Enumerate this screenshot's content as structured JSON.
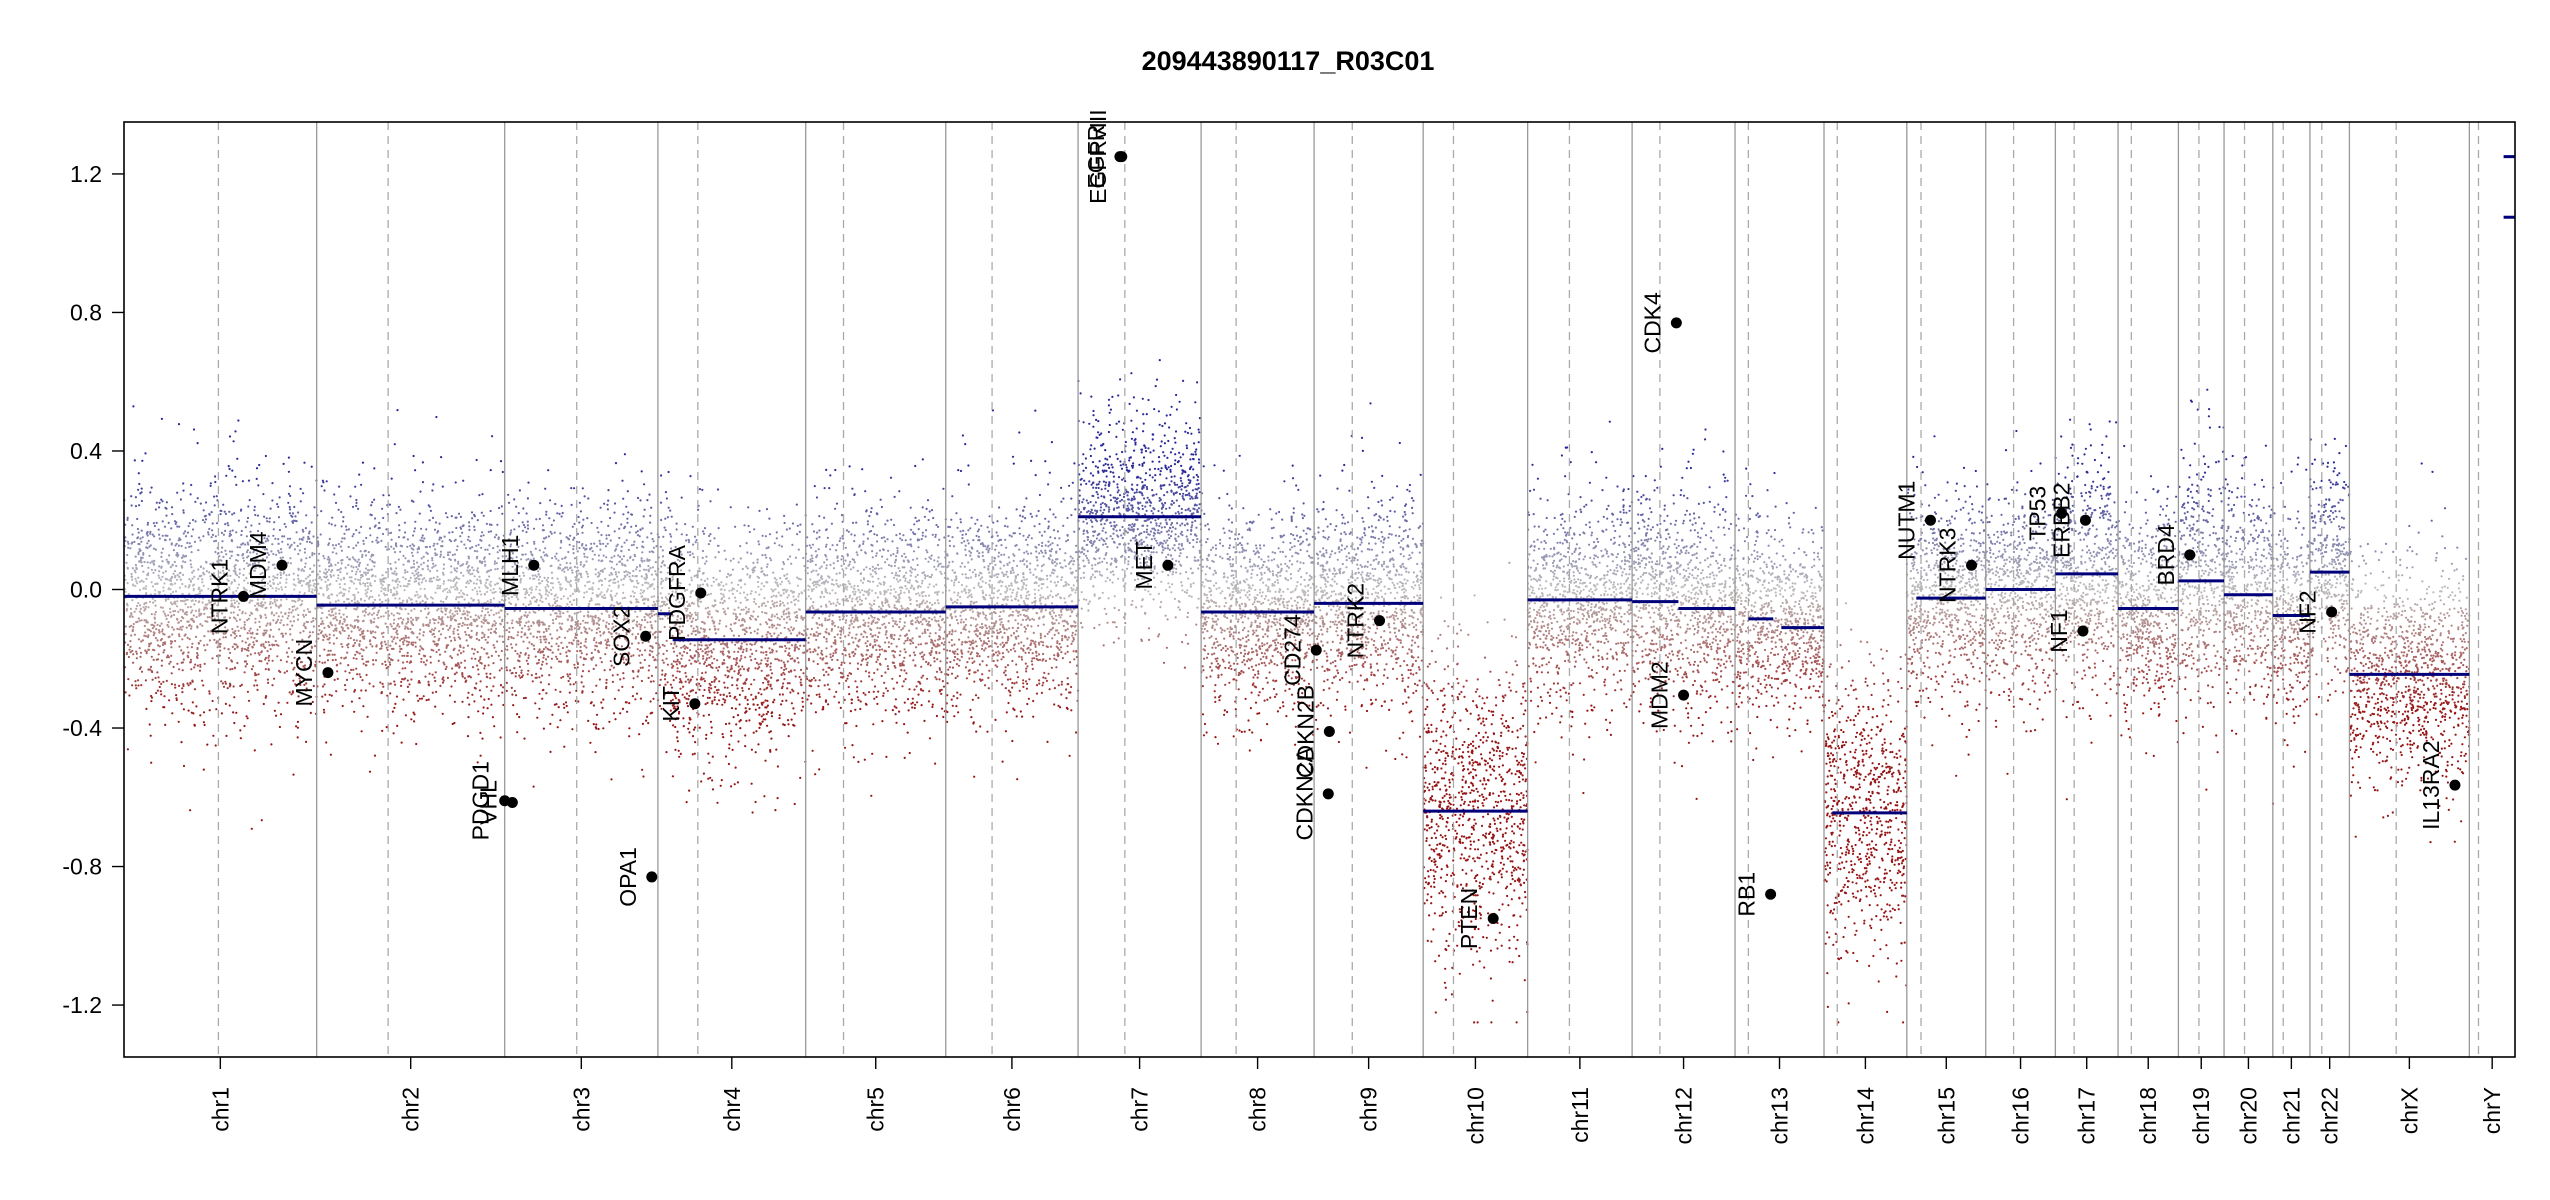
{
  "chart_data": {
    "type": "scatter",
    "title": "209443890117_R03C01",
    "xlabel": "",
    "ylabel": "",
    "ylim": [
      -1.35,
      1.35
    ],
    "y_ticks": [
      -1.2,
      -0.8,
      -0.4,
      0.0,
      0.4,
      0.8,
      1.2
    ],
    "y_tick_labels": [
      "-1.2",
      "-0.8",
      "-0.4",
      "0.0",
      "0.4",
      "0.8",
      "1.2"
    ],
    "colors": {
      "gain": "#3a3aa0",
      "loss": "#a01818",
      "neutral": "#b4b4b4",
      "segment": "#00007a",
      "gene_point": "#000000"
    },
    "chromosomes": [
      {
        "name": "chr1",
        "length": 249,
        "centromere": 0.49,
        "segments": [
          {
            "start": 0,
            "end": 1,
            "value": -0.02
          }
        ],
        "noise": 0.16
      },
      {
        "name": "chr2",
        "length": 243,
        "centromere": 0.38,
        "segments": [
          {
            "start": 0,
            "end": 1,
            "value": -0.045
          }
        ],
        "noise": 0.15
      },
      {
        "name": "chr3",
        "length": 198,
        "centromere": 0.47,
        "segments": [
          {
            "start": 0,
            "end": 1,
            "value": -0.055
          }
        ],
        "noise": 0.15
      },
      {
        "name": "chr4",
        "length": 191,
        "centromere": 0.27,
        "segments": [
          {
            "start": 0,
            "end": 0.1,
            "value": -0.07
          },
          {
            "start": 0.1,
            "end": 1,
            "value": -0.145
          }
        ],
        "noise": 0.16
      },
      {
        "name": "chr5",
        "length": 181,
        "centromere": 0.27,
        "segments": [
          {
            "start": 0,
            "end": 1,
            "value": -0.065
          }
        ],
        "noise": 0.15
      },
      {
        "name": "chr6",
        "length": 171,
        "centromere": 0.35,
        "segments": [
          {
            "start": 0,
            "end": 1,
            "value": -0.05
          }
        ],
        "noise": 0.15
      },
      {
        "name": "chr7",
        "length": 159,
        "centromere": 0.38,
        "segments": [
          {
            "start": 0,
            "end": 0.36,
            "value": 0.21
          },
          {
            "start": 0.36,
            "end": 1,
            "value": 0.21
          }
        ],
        "noise": 0.14
      },
      {
        "name": "chr8",
        "length": 146,
        "centromere": 0.31,
        "segments": [
          {
            "start": 0,
            "end": 1,
            "value": -0.065
          }
        ],
        "noise": 0.15
      },
      {
        "name": "chr9",
        "length": 141,
        "centromere": 0.35,
        "segments": [
          {
            "start": 0,
            "end": 1,
            "value": -0.04
          }
        ],
        "noise": 0.15
      },
      {
        "name": "chr10",
        "length": 135,
        "centromere": 0.29,
        "segments": [
          {
            "start": 0,
            "end": 1,
            "value": -0.64
          }
        ],
        "noise": 0.22
      },
      {
        "name": "chr11",
        "length": 135,
        "centromere": 0.4,
        "segments": [
          {
            "start": 0,
            "end": 1,
            "value": -0.03
          }
        ],
        "noise": 0.15
      },
      {
        "name": "chr12",
        "length": 133,
        "centromere": 0.27,
        "segments": [
          {
            "start": 0,
            "end": 0.45,
            "value": -0.035
          },
          {
            "start": 0.45,
            "end": 1,
            "value": -0.055
          }
        ],
        "noise": 0.16
      },
      {
        "name": "chr13",
        "length": 115,
        "centromere": 0.15,
        "segments": [
          {
            "start": 0.15,
            "end": 0.43,
            "value": -0.085
          },
          {
            "start": 0.52,
            "end": 1,
            "value": -0.11
          }
        ],
        "noise": 0.14
      },
      {
        "name": "chr14",
        "length": 107,
        "centromere": 0.16,
        "segments": [
          {
            "start": 0.1,
            "end": 1,
            "value": -0.645
          }
        ],
        "noise": 0.22
      },
      {
        "name": "chr15",
        "length": 102,
        "centromere": 0.18,
        "segments": [
          {
            "start": 0.12,
            "end": 1,
            "value": -0.025
          }
        ],
        "noise": 0.15
      },
      {
        "name": "chr16",
        "length": 90,
        "centromere": 0.4,
        "segments": [
          {
            "start": 0,
            "end": 1,
            "value": 0.0
          }
        ],
        "noise": 0.15
      },
      {
        "name": "chr17",
        "length": 81,
        "centromere": 0.3,
        "segments": [
          {
            "start": 0,
            "end": 1,
            "value": 0.045
          }
        ],
        "noise": 0.17
      },
      {
        "name": "chr18",
        "length": 78,
        "centromere": 0.22,
        "segments": [
          {
            "start": 0,
            "end": 1,
            "value": -0.055
          }
        ],
        "noise": 0.15
      },
      {
        "name": "chr19",
        "length": 59,
        "centromere": 0.45,
        "segments": [
          {
            "start": 0,
            "end": 1,
            "value": 0.025
          }
        ],
        "noise": 0.17
      },
      {
        "name": "chr20",
        "length": 63,
        "centromere": 0.42,
        "segments": [
          {
            "start": 0,
            "end": 1,
            "value": -0.015
          }
        ],
        "noise": 0.15
      },
      {
        "name": "chr21",
        "length": 48,
        "centromere": 0.28,
        "segments": [
          {
            "start": 0,
            "end": 1,
            "value": -0.075
          }
        ],
        "noise": 0.15
      },
      {
        "name": "chr22",
        "length": 51,
        "centromere": 0.3,
        "segments": [
          {
            "start": 0,
            "end": 1,
            "value": 0.05
          }
        ],
        "noise": 0.16
      },
      {
        "name": "chrX",
        "length": 155,
        "centromere": 0.39,
        "segments": [
          {
            "start": 0,
            "end": 1,
            "value": -0.245
          }
        ],
        "noise": 0.16
      },
      {
        "name": "chrY",
        "length": 59,
        "centromere": 0.2,
        "segments": [
          {
            "start": 0.75,
            "end": 1,
            "value": 1.25
          },
          {
            "start": 0.75,
            "end": 1,
            "value": 1.075
          }
        ],
        "noise": 0.0
      }
    ],
    "genes": [
      {
        "name": "NTRK1",
        "chr": "chr1",
        "pos": 0.62,
        "value": -0.02
      },
      {
        "name": "MDM4",
        "chr": "chr1",
        "pos": 0.82,
        "value": 0.07
      },
      {
        "name": "MYCN",
        "chr": "chr2",
        "pos": 0.06,
        "value": -0.24
      },
      {
        "name": "MLH1",
        "chr": "chr3",
        "pos": 0.19,
        "value": 0.07
      },
      {
        "name": "PDGD1",
        "chr": "chr3",
        "pos": 0.0,
        "value": -0.61
      },
      {
        "name": "VHL",
        "chr": "chr3",
        "pos": 0.05,
        "value": -0.615
      },
      {
        "name": "SOX2",
        "chr": "chr3",
        "pos": 0.92,
        "value": -0.135
      },
      {
        "name": "OPA1",
        "chr": "chr3",
        "pos": 0.96,
        "value": -0.83
      },
      {
        "name": "KIT",
        "chr": "chr4",
        "pos": 0.25,
        "value": -0.33
      },
      {
        "name": "PDGFRA",
        "chr": "chr4",
        "pos": 0.29,
        "value": -0.01
      },
      {
        "name": "EGFR",
        "chr": "chr7",
        "pos": 0.34,
        "value": 1.25
      },
      {
        "name": "EGFRvIII",
        "chr": "chr7",
        "pos": 0.355,
        "value": 1.25
      },
      {
        "name": "MET",
        "chr": "chr7",
        "pos": 0.73,
        "value": 0.07
      },
      {
        "name": "CD274",
        "chr": "chr9",
        "pos": 0.02,
        "value": -0.175
      },
      {
        "name": "CDKN2A",
        "chr": "chr9",
        "pos": 0.13,
        "value": -0.59
      },
      {
        "name": "CDKN2B",
        "chr": "chr9",
        "pos": 0.14,
        "value": -0.41
      },
      {
        "name": "NTRK2",
        "chr": "chr9",
        "pos": 0.6,
        "value": -0.09
      },
      {
        "name": "PTEN",
        "chr": "chr10",
        "pos": 0.67,
        "value": -0.95
      },
      {
        "name": "CDK4",
        "chr": "chr12",
        "pos": 0.43,
        "value": 0.77
      },
      {
        "name": "MDM2",
        "chr": "chr12",
        "pos": 0.5,
        "value": -0.305
      },
      {
        "name": "RB1",
        "chr": "chr13",
        "pos": 0.4,
        "value": -0.88
      },
      {
        "name": "NUTM1",
        "chr": "chr15",
        "pos": 0.3,
        "value": 0.2
      },
      {
        "name": "NTRK3",
        "chr": "chr15",
        "pos": 0.82,
        "value": 0.07
      },
      {
        "name": "TP53",
        "chr": "chr17",
        "pos": 0.1,
        "value": 0.22
      },
      {
        "name": "NF1",
        "chr": "chr17",
        "pos": 0.44,
        "value": -0.12
      },
      {
        "name": "ERBB2",
        "chr": "chr17",
        "pos": 0.48,
        "value": 0.2
      },
      {
        "name": "BRD4",
        "chr": "chr19",
        "pos": 0.25,
        "value": 0.1
      },
      {
        "name": "NF2",
        "chr": "chr22",
        "pos": 0.55,
        "value": -0.065
      },
      {
        "name": "IL13RA2",
        "chr": "chrX",
        "pos": 0.88,
        "value": -0.565
      }
    ]
  }
}
